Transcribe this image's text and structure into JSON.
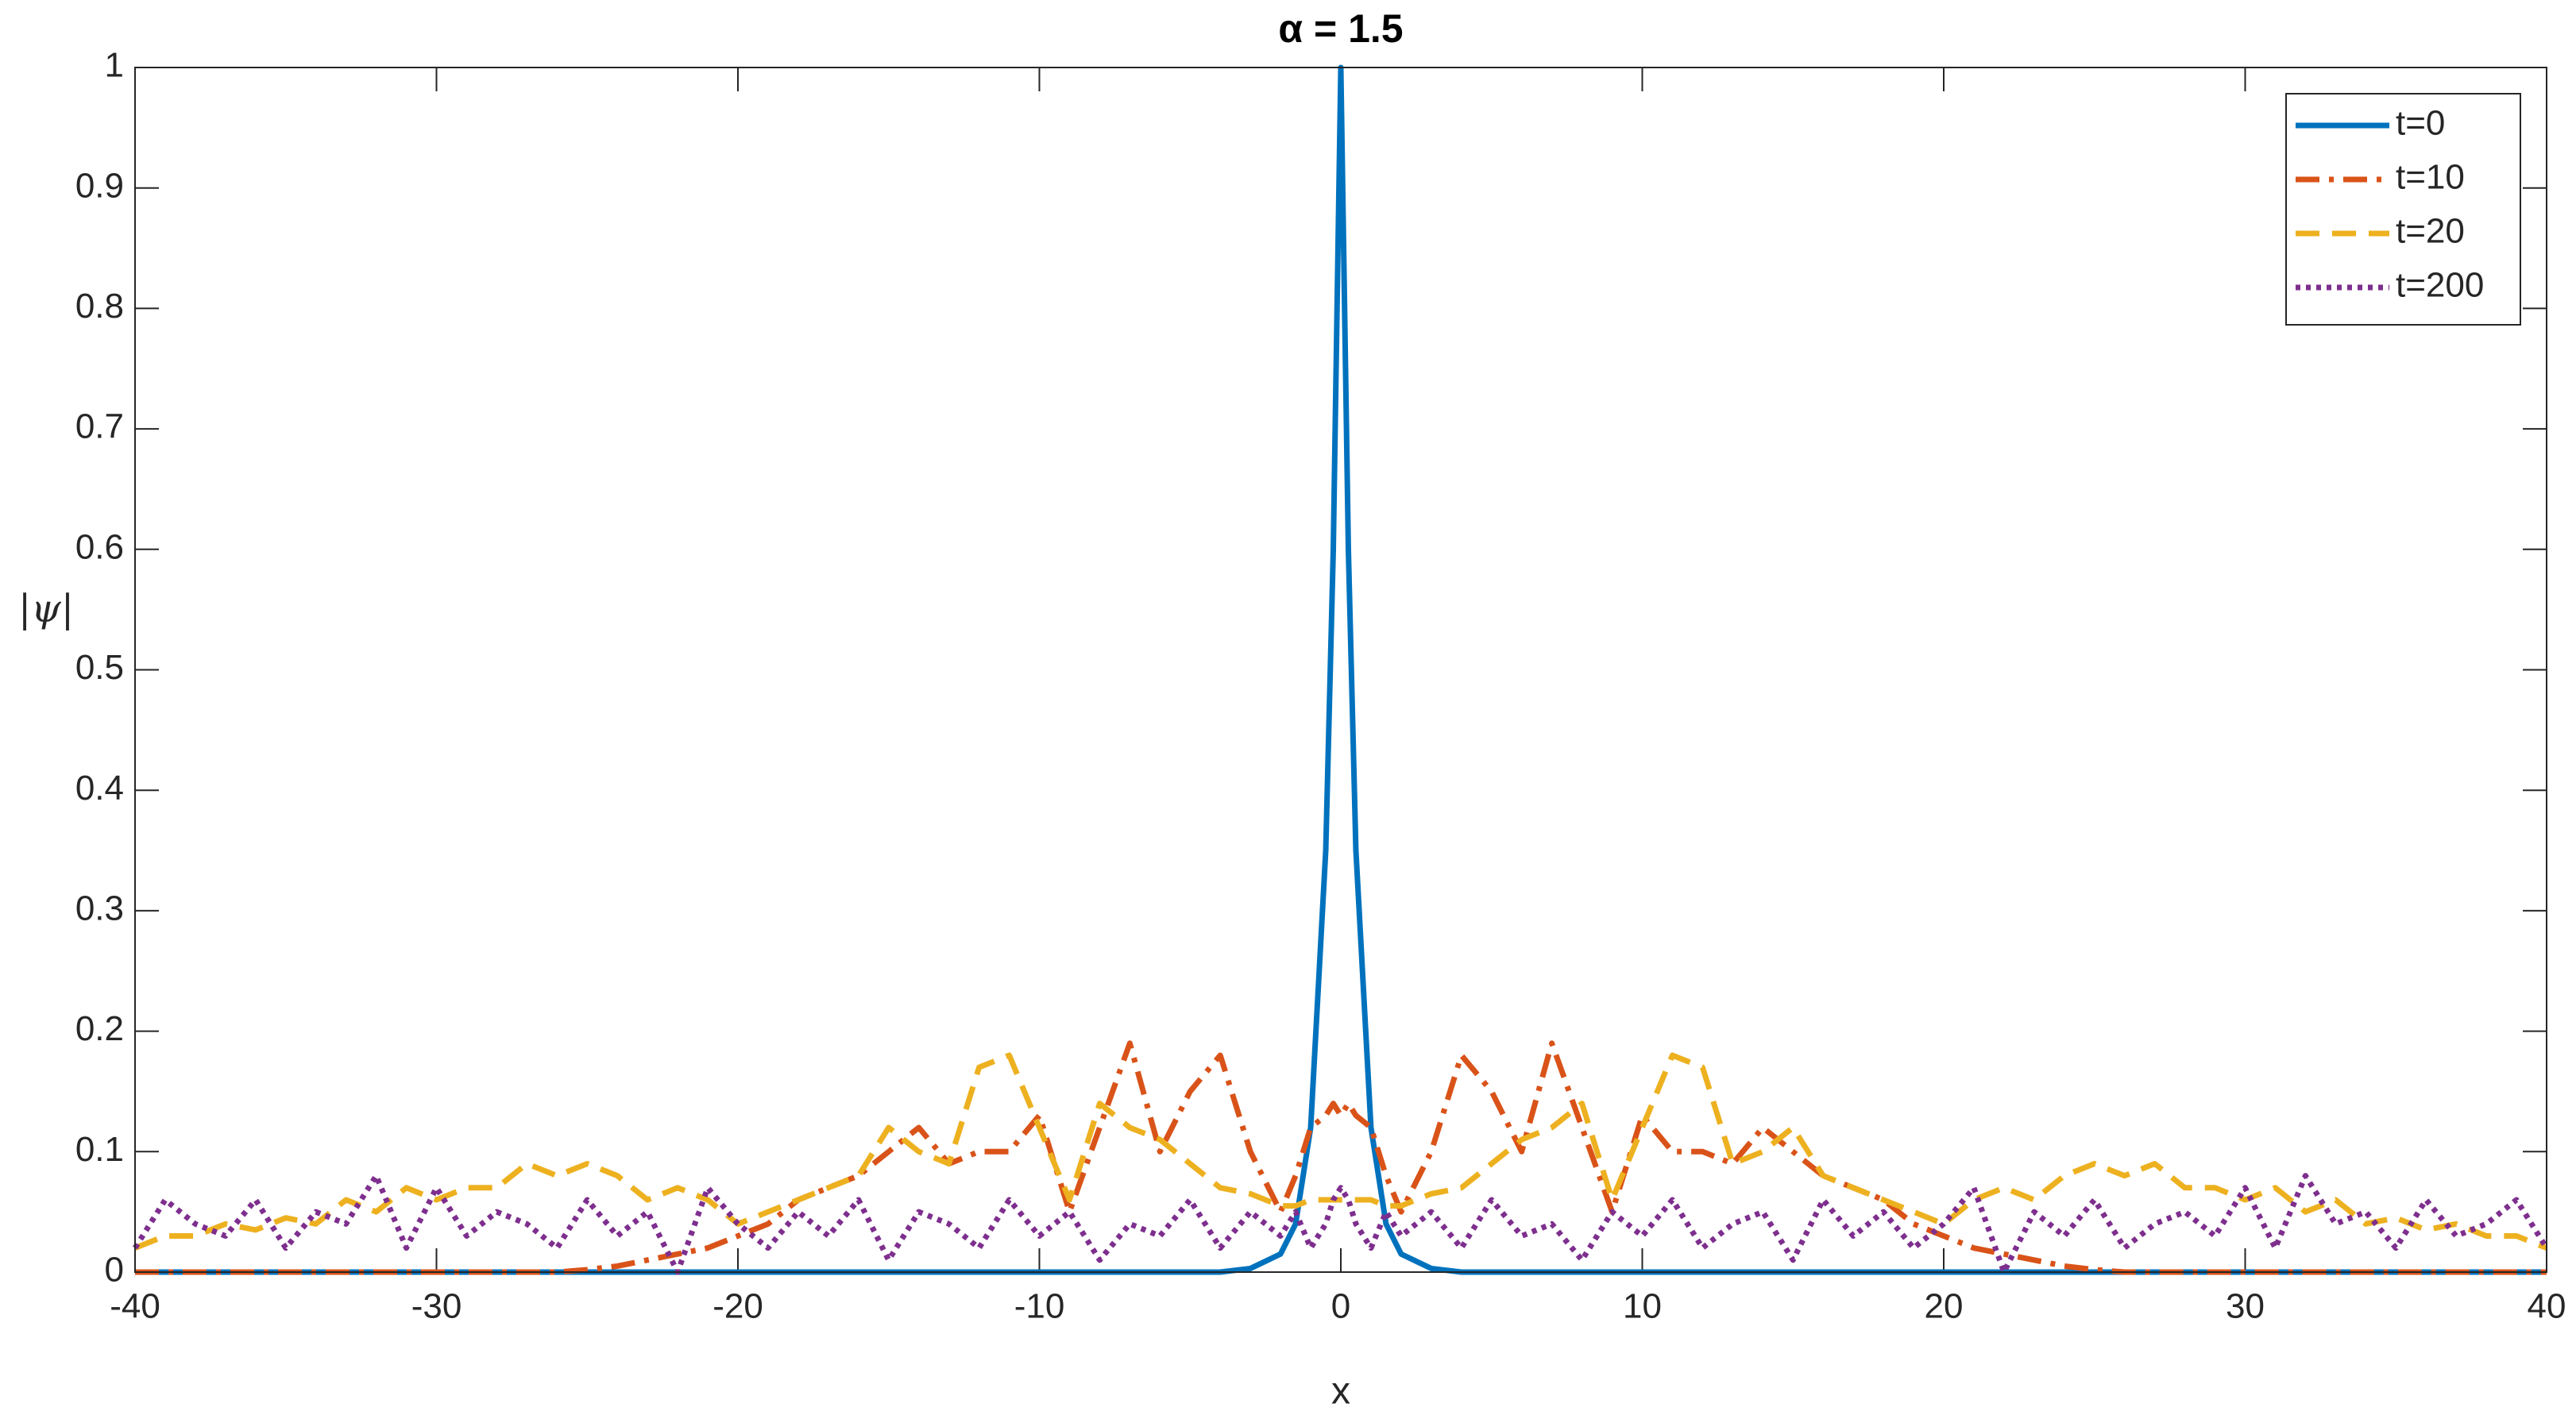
{
  "chart_data": {
    "type": "line",
    "title": "α = 1.5",
    "xlabel": "x",
    "ylabel": "|ψ|",
    "x": [
      -40,
      -39,
      -38,
      -37,
      -36,
      -35,
      -34,
      -33,
      -32,
      -31,
      -30,
      -29,
      -28,
      -27,
      -26,
      -25,
      -24,
      -23,
      -22,
      -21,
      -20,
      -19,
      -18,
      -17,
      -16,
      -15,
      -14,
      -13,
      -12,
      -11,
      -10,
      -9,
      -8,
      -7,
      -6,
      -5,
      -4,
      -3,
      -2,
      -1.5,
      -1,
      -0.5,
      -0.25,
      0,
      0.25,
      0.5,
      1,
      1.5,
      2,
      3,
      4,
      5,
      6,
      7,
      8,
      9,
      10,
      11,
      12,
      13,
      14,
      15,
      16,
      17,
      18,
      19,
      20,
      21,
      22,
      23,
      24,
      25,
      26,
      27,
      28,
      29,
      30,
      31,
      32,
      33,
      34,
      35,
      36,
      37,
      38,
      39,
      40
    ],
    "series": [
      {
        "name": "t=0",
        "color": "#0072BD",
        "linestyle": "solid",
        "values": [
          0,
          0,
          0,
          0,
          0,
          0,
          0,
          0,
          0,
          0,
          0,
          0,
          0,
          0,
          0,
          0,
          0,
          0,
          0,
          0,
          0,
          0,
          0,
          0,
          0,
          0,
          0,
          0,
          0,
          0,
          0,
          0,
          0,
          0,
          0,
          0,
          0,
          0.003,
          0.015,
          0.04,
          0.12,
          0.35,
          0.6,
          1,
          0.6,
          0.35,
          0.12,
          0.04,
          0.015,
          0.003,
          0,
          0,
          0,
          0,
          0,
          0,
          0,
          0,
          0,
          0,
          0,
          0,
          0,
          0,
          0,
          0,
          0,
          0,
          0,
          0,
          0,
          0,
          0,
          0,
          0,
          0,
          0,
          0,
          0,
          0,
          0,
          0,
          0,
          0,
          0,
          0,
          0
        ]
      },
      {
        "name": "t=10",
        "color": "#D95319",
        "linestyle": "dashdot",
        "values": [
          0,
          0,
          0,
          0,
          0,
          0,
          0,
          0,
          0,
          0,
          0,
          0,
          0,
          0,
          0,
          0.002,
          0.005,
          0.01,
          0.015,
          0.02,
          0.03,
          0.04,
          0.06,
          0.07,
          0.08,
          0.1,
          0.12,
          0.09,
          0.1,
          0.1,
          0.13,
          0.05,
          0.12,
          0.19,
          0.1,
          0.15,
          0.18,
          0.1,
          0.05,
          0.08,
          0.12,
          0.13,
          0.14,
          0.13,
          0.14,
          0.13,
          0.12,
          0.08,
          0.05,
          0.1,
          0.18,
          0.15,
          0.1,
          0.19,
          0.12,
          0.05,
          0.13,
          0.1,
          0.1,
          0.09,
          0.12,
          0.1,
          0.08,
          0.07,
          0.06,
          0.04,
          0.03,
          0.02,
          0.015,
          0.01,
          0.005,
          0.002,
          0,
          0,
          0,
          0,
          0,
          0,
          0,
          0,
          0,
          0,
          0,
          0,
          0,
          0,
          0
        ]
      },
      {
        "name": "t=20",
        "color": "#EDB120",
        "linestyle": "dashed",
        "values": [
          0.02,
          0.03,
          0.03,
          0.04,
          0.035,
          0.045,
          0.04,
          0.06,
          0.05,
          0.07,
          0.06,
          0.07,
          0.07,
          0.09,
          0.08,
          0.09,
          0.08,
          0.06,
          0.07,
          0.06,
          0.04,
          0.05,
          0.06,
          0.07,
          0.08,
          0.12,
          0.1,
          0.09,
          0.17,
          0.18,
          0.12,
          0.06,
          0.14,
          0.12,
          0.11,
          0.09,
          0.07,
          0.065,
          0.055,
          0.055,
          0.06,
          0.06,
          0.06,
          0.06,
          0.06,
          0.06,
          0.06,
          0.055,
          0.055,
          0.065,
          0.07,
          0.09,
          0.11,
          0.12,
          0.14,
          0.06,
          0.12,
          0.18,
          0.17,
          0.09,
          0.1,
          0.12,
          0.08,
          0.07,
          0.06,
          0.05,
          0.04,
          0.06,
          0.07,
          0.06,
          0.08,
          0.09,
          0.08,
          0.09,
          0.07,
          0.07,
          0.06,
          0.07,
          0.05,
          0.06,
          0.04,
          0.045,
          0.035,
          0.04,
          0.03,
          0.03,
          0.02
        ]
      },
      {
        "name": "t=200",
        "color": "#7E2F8E",
        "linestyle": "dotted",
        "values": [
          0.02,
          0.06,
          0.04,
          0.03,
          0.06,
          0.02,
          0.05,
          0.04,
          0.08,
          0.02,
          0.07,
          0.03,
          0.05,
          0.04,
          0.02,
          0.06,
          0.03,
          0.05,
          0,
          0.07,
          0.04,
          0.02,
          0.05,
          0.03,
          0.06,
          0.01,
          0.05,
          0.04,
          0.02,
          0.06,
          0.03,
          0.05,
          0.01,
          0.04,
          0.03,
          0.06,
          0.02,
          0.05,
          0.03,
          0.05,
          0.02,
          0.04,
          0.06,
          0.07,
          0.06,
          0.04,
          0.02,
          0.05,
          0.03,
          0.05,
          0.02,
          0.06,
          0.03,
          0.04,
          0.01,
          0.05,
          0.03,
          0.06,
          0.02,
          0.04,
          0.05,
          0.01,
          0.06,
          0.03,
          0.05,
          0.02,
          0.04,
          0.07,
          0,
          0.05,
          0.03,
          0.06,
          0.02,
          0.04,
          0.05,
          0.03,
          0.07,
          0.02,
          0.08,
          0.04,
          0.05,
          0.02,
          0.06,
          0.03,
          0.04,
          0.06,
          0.02
        ]
      }
    ],
    "xlim": [
      -40,
      40
    ],
    "xticks": [
      -40,
      -30,
      -20,
      -10,
      0,
      10,
      20,
      30,
      40
    ],
    "ylim": [
      0,
      1
    ],
    "yticks": [
      0,
      0.1,
      0.2,
      0.3,
      0.4,
      0.5,
      0.6,
      0.7,
      0.8,
      0.9,
      1
    ],
    "grid": false,
    "legend": "upper-right"
  }
}
